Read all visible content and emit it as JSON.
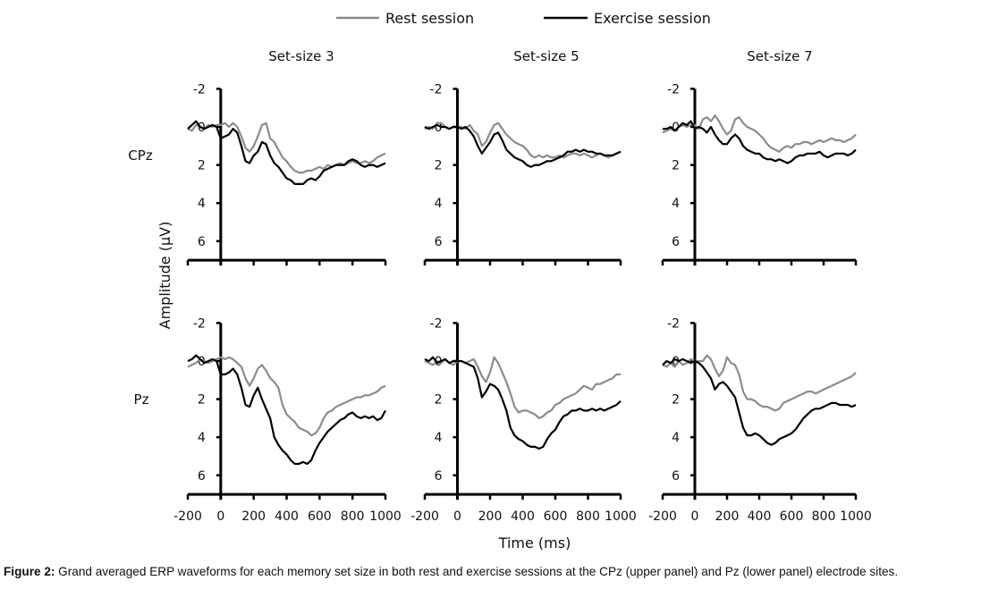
{
  "chart_data": {
    "type": "line",
    "legend": {
      "placement": "top-center",
      "entries": [
        {
          "name": "Rest session",
          "color": "#8c8c8c"
        },
        {
          "name": "Exercise session",
          "color": "#000000"
        }
      ]
    },
    "xlabel": "Time (ms)",
    "ylabel": "Amplitude (µV)",
    "xlim": [
      -200,
      1000
    ],
    "ylim": [
      -2,
      7
    ],
    "y_inverted": true,
    "x_ticks": [
      "-200",
      "0",
      "200",
      "400",
      "600",
      "800",
      "1000"
    ],
    "y_ticks": [
      "-2",
      "0",
      "2",
      "4",
      "6"
    ],
    "x_tick_values": [
      -200,
      0,
      200,
      400,
      600,
      800,
      1000
    ],
    "y_tick_values": [
      -2,
      0,
      2,
      4,
      6
    ],
    "column_titles": [
      "Set-size 3",
      "Set-size 5",
      "Set-size 7"
    ],
    "row_labels": [
      "CPz",
      "Pz"
    ],
    "x_step_ms": 25,
    "x_start_ms": -200,
    "panels": [
      {
        "row": 0,
        "col": 0,
        "electrode": "CPz",
        "set_size": "Set-size 3",
        "series": [
          {
            "name": "Rest session",
            "values": [
              0.1,
              0.2,
              -0.1,
              0.0,
              0.1,
              -0.1,
              0.0,
              -0.1,
              -0.1,
              -0.2,
              0.0,
              -0.2,
              0.0,
              0.5,
              1.1,
              1.3,
              1.0,
              0.5,
              -0.1,
              -0.2,
              0.6,
              0.8,
              1.2,
              1.6,
              1.8,
              2.1,
              2.3,
              2.4,
              2.4,
              2.3,
              2.3,
              2.2,
              2.1,
              2.2,
              2.0,
              2.1,
              2.0,
              1.9,
              2.0,
              1.9,
              1.8,
              1.9,
              1.9,
              1.8,
              1.9,
              1.8,
              1.6,
              1.5,
              1.4
            ]
          },
          {
            "name": "Exercise session",
            "values": [
              0.1,
              -0.1,
              -0.3,
              0.0,
              0.1,
              0.0,
              -0.1,
              0.0,
              0.6,
              0.5,
              0.4,
              0.1,
              0.3,
              1.0,
              1.8,
              1.9,
              1.5,
              1.3,
              0.8,
              0.9,
              1.5,
              1.9,
              2.1,
              2.4,
              2.7,
              2.8,
              3.0,
              3.0,
              3.0,
              2.8,
              2.7,
              2.8,
              2.6,
              2.3,
              2.2,
              2.1,
              2.0,
              2.0,
              2.0,
              1.8,
              1.7,
              1.8,
              2.0,
              2.1,
              2.0,
              2.0,
              2.1,
              2.0,
              1.9
            ]
          }
        ]
      },
      {
        "row": 0,
        "col": 1,
        "electrode": "CPz",
        "set_size": "Set-size 5",
        "series": [
          {
            "name": "Rest session",
            "values": [
              0.1,
              0.0,
              0.1,
              -0.2,
              -0.2,
              0.0,
              0.1,
              0.0,
              0.0,
              0.0,
              0.1,
              -0.1,
              0.2,
              0.4,
              1.0,
              0.8,
              0.3,
              -0.1,
              -0.2,
              0.1,
              0.4,
              0.6,
              0.8,
              0.9,
              1.0,
              1.2,
              1.5,
              1.6,
              1.5,
              1.6,
              1.5,
              1.6,
              1.6,
              1.5,
              1.6,
              1.5,
              1.4,
              1.4,
              1.5,
              1.4,
              1.5,
              1.6,
              1.5,
              1.4,
              1.5,
              1.6,
              1.5,
              1.4,
              1.3
            ]
          },
          {
            "name": "Exercise session",
            "values": [
              0.0,
              0.1,
              0.0,
              -0.1,
              0.0,
              0.0,
              0.1,
              0.0,
              0.0,
              0.1,
              0.0,
              0.2,
              0.5,
              1.0,
              1.4,
              1.1,
              0.8,
              0.4,
              0.3,
              0.7,
              1.2,
              1.4,
              1.6,
              1.7,
              1.8,
              2.0,
              2.1,
              2.0,
              2.0,
              1.9,
              1.8,
              1.8,
              1.7,
              1.6,
              1.5,
              1.3,
              1.3,
              1.2,
              1.3,
              1.2,
              1.3,
              1.3,
              1.4,
              1.4,
              1.5,
              1.5,
              1.5,
              1.4,
              1.3
            ]
          }
        ]
      },
      {
        "row": 0,
        "col": 2,
        "electrode": "CPz",
        "set_size": "Set-size 7",
        "series": [
          {
            "name": "Rest session",
            "values": [
              0.3,
              0.2,
              0.1,
              0.2,
              0.0,
              -0.1,
              0.0,
              -0.1,
              -0.1,
              0.1,
              -0.4,
              -0.5,
              -0.3,
              -0.6,
              -0.3,
              0.1,
              0.4,
              0.2,
              -0.4,
              -0.5,
              -0.2,
              0.0,
              0.1,
              0.2,
              0.4,
              0.6,
              0.9,
              1.1,
              1.2,
              1.3,
              1.1,
              1.0,
              1.1,
              0.9,
              0.9,
              0.8,
              0.8,
              0.9,
              0.8,
              0.7,
              0.8,
              0.7,
              0.6,
              0.7,
              0.7,
              0.8,
              0.7,
              0.6,
              0.4
            ]
          },
          {
            "name": "Exercise session",
            "values": [
              0.1,
              0.1,
              0.0,
              0.2,
              0.0,
              -0.2,
              -0.1,
              -0.3,
              0.1,
              0.0,
              0.1,
              0.3,
              0.0,
              0.4,
              0.7,
              0.9,
              0.9,
              0.6,
              0.4,
              0.6,
              1.0,
              1.2,
              1.3,
              1.4,
              1.4,
              1.6,
              1.7,
              1.7,
              1.8,
              1.7,
              1.8,
              1.9,
              1.8,
              1.6,
              1.5,
              1.5,
              1.4,
              1.4,
              1.4,
              1.3,
              1.5,
              1.6,
              1.5,
              1.4,
              1.4,
              1.4,
              1.5,
              1.4,
              1.2
            ]
          }
        ]
      },
      {
        "row": 1,
        "col": 0,
        "electrode": "Pz",
        "set_size": "Set-size 3",
        "series": [
          {
            "name": "Rest session",
            "values": [
              0.3,
              0.2,
              0.1,
              -0.1,
              0.0,
              0.1,
              0.0,
              -0.1,
              -0.2,
              -0.1,
              -0.2,
              -0.1,
              0.1,
              0.3,
              0.9,
              1.3,
              0.9,
              0.4,
              0.2,
              0.5,
              0.9,
              1.1,
              1.4,
              2.3,
              2.8,
              3.0,
              3.2,
              3.5,
              3.6,
              3.7,
              3.9,
              3.8,
              3.5,
              3.0,
              2.7,
              2.6,
              2.4,
              2.3,
              2.2,
              2.1,
              2.0,
              1.9,
              1.9,
              1.8,
              1.8,
              1.7,
              1.6,
              1.4,
              1.3
            ]
          },
          {
            "name": "Exercise session",
            "values": [
              0.0,
              -0.1,
              -0.3,
              -0.1,
              0.1,
              0.0,
              -0.1,
              0.0,
              0.7,
              0.7,
              0.6,
              0.4,
              0.7,
              1.4,
              2.3,
              2.4,
              1.8,
              1.4,
              2.0,
              2.5,
              3.0,
              4.0,
              4.4,
              4.7,
              4.9,
              5.2,
              5.4,
              5.4,
              5.3,
              5.4,
              5.2,
              4.7,
              4.3,
              4.0,
              3.7,
              3.5,
              3.3,
              3.1,
              3.0,
              2.8,
              2.7,
              2.9,
              3.0,
              2.9,
              3.0,
              2.9,
              3.1,
              3.0,
              2.6
            ]
          }
        ]
      },
      {
        "row": 1,
        "col": 1,
        "electrode": "Pz",
        "set_size": "Set-size 5",
        "series": [
          {
            "name": "Rest session",
            "values": [
              0.0,
              0.1,
              0.2,
              0.0,
              0.1,
              -0.1,
              0.1,
              0.2,
              0.0,
              0.0,
              0.1,
              0.0,
              -0.1,
              0.3,
              0.8,
              1.1,
              0.6,
              -0.2,
              0.1,
              0.6,
              1.1,
              1.7,
              2.4,
              2.7,
              2.6,
              2.6,
              2.7,
              2.8,
              3.0,
              2.9,
              2.7,
              2.6,
              2.3,
              2.2,
              2.0,
              1.9,
              1.8,
              1.7,
              1.5,
              1.3,
              1.4,
              1.5,
              1.2,
              1.2,
              1.1,
              1.0,
              0.9,
              0.7,
              0.7
            ]
          },
          {
            "name": "Exercise session",
            "values": [
              -0.1,
              0.0,
              -0.2,
              0.1,
              0.0,
              -0.1,
              0.1,
              0.0,
              0.0,
              0.0,
              0.1,
              0.2,
              0.3,
              0.9,
              1.9,
              1.6,
              1.2,
              1.3,
              1.5,
              2.0,
              2.6,
              3.5,
              3.9,
              4.1,
              4.2,
              4.4,
              4.5,
              4.5,
              4.6,
              4.5,
              4.1,
              3.8,
              3.6,
              3.2,
              2.9,
              2.8,
              2.6,
              2.6,
              2.5,
              2.6,
              2.6,
              2.5,
              2.6,
              2.5,
              2.6,
              2.5,
              2.4,
              2.3,
              2.1
            ]
          }
        ]
      },
      {
        "row": 1,
        "col": 2,
        "electrode": "Pz",
        "set_size": "Set-size 7",
        "series": [
          {
            "name": "Rest session",
            "values": [
              0.2,
              0.3,
              0.1,
              0.3,
              0.0,
              0.2,
              0.1,
              -0.1,
              0.0,
              0.0,
              0.0,
              -0.3,
              -0.1,
              0.4,
              0.8,
              0.5,
              -0.2,
              0.1,
              0.2,
              0.7,
              1.6,
              2.0,
              2.0,
              2.1,
              2.3,
              2.4,
              2.4,
              2.5,
              2.6,
              2.5,
              2.2,
              2.1,
              2.0,
              1.9,
              1.8,
              1.7,
              1.6,
              1.6,
              1.7,
              1.6,
              1.5,
              1.4,
              1.3,
              1.2,
              1.1,
              1.0,
              0.9,
              0.8,
              0.6
            ]
          },
          {
            "name": "Exercise session",
            "values": [
              0.2,
              0.0,
              0.1,
              -0.1,
              0.0,
              -0.1,
              0.0,
              0.1,
              0.0,
              0.1,
              0.3,
              0.6,
              0.9,
              1.5,
              1.2,
              1.1,
              1.3,
              1.6,
              1.9,
              2.7,
              3.5,
              3.9,
              3.9,
              3.8,
              3.9,
              4.1,
              4.3,
              4.4,
              4.3,
              4.1,
              4.0,
              3.9,
              3.8,
              3.6,
              3.3,
              3.0,
              2.8,
              2.6,
              2.5,
              2.5,
              2.4,
              2.3,
              2.2,
              2.2,
              2.3,
              2.3,
              2.3,
              2.4,
              2.3
            ]
          }
        ]
      }
    ]
  },
  "caption": {
    "label": "Figure 2:",
    "text": " Grand averaged ERP waveforms for each memory set size in both rest and exercise sessions at the CPz (upper panel) and Pz (lower panel) electrode sites."
  }
}
